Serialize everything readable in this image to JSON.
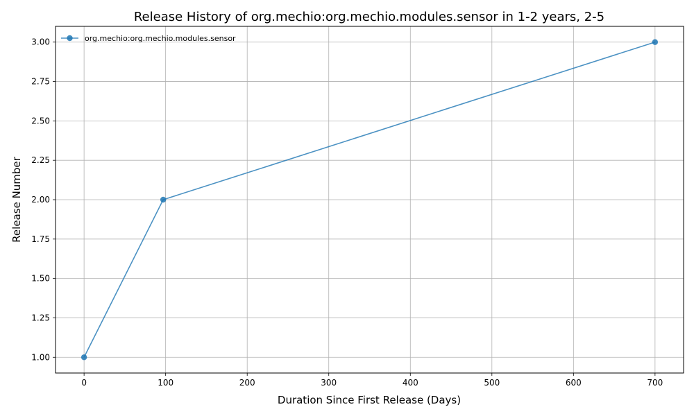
{
  "chart_data": {
    "type": "line",
    "title": "Release History of org.mechio:org.mechio.modules.sensor in 1-2 years, 2-5",
    "xlabel": "Duration Since First Release (Days)",
    "ylabel": "Release Number",
    "xlim": [
      -35,
      735
    ],
    "ylim": [
      0.9,
      3.1
    ],
    "xticks": [
      0,
      100,
      200,
      300,
      400,
      500,
      600,
      700
    ],
    "xtick_labels": [
      "0",
      "100",
      "200",
      "300",
      "400",
      "500",
      "600",
      "700"
    ],
    "yticks": [
      1.0,
      1.25,
      1.5,
      1.75,
      2.0,
      2.25,
      2.5,
      2.75,
      3.0
    ],
    "ytick_labels": [
      "1.00",
      "1.25",
      "1.50",
      "1.75",
      "2.00",
      "2.25",
      "2.50",
      "2.75",
      "3.00"
    ],
    "grid": true,
    "legend_position": "top-left",
    "series": [
      {
        "name": "org.mechio:org.mechio.modules.sensor",
        "color": "#1f77b4",
        "x": [
          0,
          97,
          700
        ],
        "y": [
          1,
          2,
          3
        ]
      }
    ]
  }
}
